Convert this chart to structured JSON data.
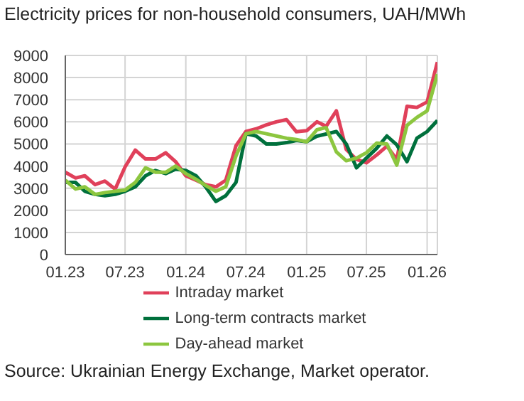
{
  "chart_data": {
    "type": "line",
    "title": "Electricity prices for non-household consumers, UAH/MWh",
    "annotations": [
      "Source: Ukrainian Energy Exchange, Market operator."
    ],
    "x": [
      "2023-01",
      "2023-02",
      "2023-03",
      "2023-04",
      "2023-05",
      "2023-06",
      "2023-07",
      "2023-08",
      "2023-09",
      "2023-10",
      "2023-11",
      "2023-12",
      "2024-01",
      "2024-02",
      "2024-03",
      "2024-04",
      "2024-05",
      "2024-06",
      "2024-07",
      "2024-08",
      "2024-09",
      "2024-10",
      "2024-11",
      "2024-12",
      "2025-01",
      "2025-02",
      "2025-03",
      "2025-04",
      "2025-05",
      "2025-06",
      "2025-07",
      "2025-08",
      "2025-09",
      "2025-10",
      "2025-11",
      "2025-12",
      "2026-01",
      "2026-02"
    ],
    "series": [
      {
        "name": "Intraday market",
        "color": "#e0405a",
        "values": [
          3720,
          3460,
          3560,
          3160,
          3320,
          2960,
          3960,
          4720,
          4320,
          4320,
          4600,
          4200,
          3560,
          3360,
          3160,
          3060,
          3360,
          4920,
          5560,
          5680,
          5860,
          6000,
          6100,
          5550,
          5600,
          6000,
          5800,
          6500,
          4750,
          4300,
          4150,
          4500,
          4900,
          4300,
          6700,
          6650,
          6900,
          8700
        ]
      },
      {
        "name": "Long-term contracts market",
        "color": "#00703c",
        "values": [
          3260,
          3260,
          2860,
          2720,
          2660,
          2720,
          2860,
          3060,
          3560,
          3800,
          3660,
          3860,
          3800,
          3560,
          3060,
          2400,
          2660,
          3260,
          5460,
          5360,
          5000,
          5000,
          5060,
          5160,
          5100,
          5350,
          5450,
          5560,
          5000,
          3920,
          4360,
          4800,
          5360,
          4960,
          4200,
          5260,
          5560,
          6060
        ]
      },
      {
        "name": "Day-ahead market",
        "color": "#8cc63f",
        "values": [
          3360,
          2960,
          3060,
          2720,
          2800,
          2860,
          2920,
          3260,
          3920,
          3720,
          3720,
          4000,
          3660,
          3400,
          3120,
          2860,
          3060,
          4460,
          5460,
          5560,
          5460,
          5360,
          5260,
          5200,
          5100,
          5640,
          5740,
          4640,
          4240,
          4360,
          4600,
          5040,
          5000,
          4040,
          5840,
          6200,
          6500,
          8160
        ]
      }
    ],
    "xlim": [
      "2023-01",
      "2026-02"
    ],
    "xticks": [
      {
        "value": "2023-01",
        "label": "01.23"
      },
      {
        "value": "2023-07",
        "label": "07.23"
      },
      {
        "value": "2024-01",
        "label": "01.24"
      },
      {
        "value": "2024-07",
        "label": "07.24"
      },
      {
        "value": "2025-01",
        "label": "01.25"
      },
      {
        "value": "2025-07",
        "label": "07.25"
      },
      {
        "value": "2026-01",
        "label": "01.26"
      }
    ],
    "ylim": [
      0,
      9000
    ],
    "yticks": [
      0,
      1000,
      2000,
      3000,
      4000,
      5000,
      6000,
      7000,
      8000,
      9000
    ],
    "grid": true,
    "legend": "bottom",
    "marker": "none",
    "line_style": "solid"
  }
}
